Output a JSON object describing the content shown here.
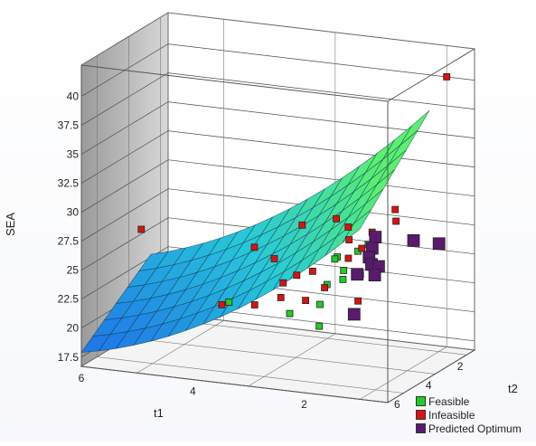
{
  "chart_data": {
    "type": "surface3d",
    "axes": {
      "z": {
        "label": "SEA",
        "ticks": [
          "17.5",
          "20",
          "22.5",
          "25",
          "27.5",
          "30",
          "32.5",
          "35",
          "37.5",
          "40"
        ]
      },
      "x": {
        "label": "t1",
        "ticks": [
          "6",
          "4",
          "2"
        ]
      },
      "y": {
        "label": "t2",
        "ticks": [
          "2",
          "4",
          "6"
        ]
      }
    },
    "surface": {
      "description_colors": [
        "#1e6fe8",
        "#28c8d8",
        "#58f070"
      ]
    },
    "legend": [
      {
        "label": "Feasible",
        "color": "#22cc22"
      },
      {
        "label": "Infeasible",
        "color": "#dd1111"
      },
      {
        "label": "Predicted Optimum",
        "color": "#5a1a6e"
      }
    ],
    "points": {
      "feasible": [
        {
          "t1": 2.2,
          "t2": 3.2,
          "sea": 26.0
        },
        {
          "t1": 2.0,
          "t2": 3.5,
          "sea": 25.2
        },
        {
          "t1": 1.9,
          "t2": 3.9,
          "sea": 24.8
        },
        {
          "t1": 2.1,
          "t2": 4.2,
          "sea": 24.5
        },
        {
          "t1": 2.3,
          "t2": 3.0,
          "sea": 25.6
        },
        {
          "t1": 1.8,
          "t2": 3.3,
          "sea": 26.8
        },
        {
          "t1": 2.6,
          "t2": 4.8,
          "sea": 22.2
        },
        {
          "t1": 2.0,
          "t2": 5.0,
          "sea": 23.5
        },
        {
          "t1": 4.2,
          "t2": 3.0,
          "sea": 20.8
        },
        {
          "t1": 1.7,
          "t2": 3.0,
          "sea": 27.2
        },
        {
          "t1": 1.9,
          "t2": 5.4,
          "sea": 22.0
        }
      ],
      "infeasible": [
        {
          "t1": 1.0,
          "t2": 0.5,
          "sea": 40.0
        },
        {
          "t1": 3.0,
          "t2": 2.6,
          "sea": 27.8
        },
        {
          "t1": 2.5,
          "t2": 2.2,
          "sea": 28.3
        },
        {
          "t1": 2.2,
          "t2": 2.5,
          "sea": 28.0
        },
        {
          "t1": 1.8,
          "t2": 2.4,
          "sea": 27.7
        },
        {
          "t1": 2.5,
          "t2": 3.7,
          "sea": 25.0
        },
        {
          "t1": 2.7,
          "t2": 4.0,
          "sea": 24.8
        },
        {
          "t1": 3.3,
          "t2": 3.3,
          "sea": 25.3
        },
        {
          "t1": 3.0,
          "t2": 3.8,
          "sea": 23.8
        },
        {
          "t1": 2.9,
          "t2": 4.3,
          "sea": 23.0
        },
        {
          "t1": 2.4,
          "t2": 4.5,
          "sea": 23.2
        },
        {
          "t1": 3.4,
          "t2": 4.2,
          "sea": 22.0
        },
        {
          "t1": 2.2,
          "t2": 4.0,
          "sea": 24.0
        },
        {
          "t1": 2.0,
          "t2": 3.2,
          "sea": 26.0
        },
        {
          "t1": 2.1,
          "t2": 2.8,
          "sea": 27.2
        },
        {
          "t1": 1.9,
          "t2": 2.7,
          "sea": 26.5
        },
        {
          "t1": 1.7,
          "t2": 3.5,
          "sea": 25.0
        },
        {
          "t1": 1.6,
          "t2": 4.0,
          "sea": 23.2
        },
        {
          "t1": 4.3,
          "t2": 3.1,
          "sea": 20.6
        },
        {
          "t1": 6.0,
          "t2": 2.2,
          "sea": 25.4
        },
        {
          "t1": 1.5,
          "t2": 2.0,
          "sea": 29.5
        },
        {
          "t1": 1.4,
          "t2": 2.3,
          "sea": 28.8
        },
        {
          "t1": 3.8,
          "t2": 2.8,
          "sea": 25.6
        }
      ],
      "predicted_optimum": [
        {
          "t1": 1.6,
          "t2": 2.9,
          "sea": 27.8
        },
        {
          "t1": 1.6,
          "t2": 3.1,
          "sea": 27.0
        },
        {
          "t1": 1.6,
          "t2": 3.3,
          "sea": 26.4
        },
        {
          "t1": 1.5,
          "t2": 3.5,
          "sea": 26.0
        },
        {
          "t1": 1.7,
          "t2": 3.7,
          "sea": 25.2
        },
        {
          "t1": 1.4,
          "t2": 3.4,
          "sea": 25.8
        },
        {
          "t1": 1.3,
          "t2": 4.0,
          "sea": 25.6
        },
        {
          "t1": 1.0,
          "t2": 2.6,
          "sea": 27.6
        },
        {
          "t1": 0.6,
          "t2": 2.4,
          "sea": 27.4
        },
        {
          "t1": 1.5,
          "t2": 4.6,
          "sea": 22.6
        }
      ]
    }
  }
}
